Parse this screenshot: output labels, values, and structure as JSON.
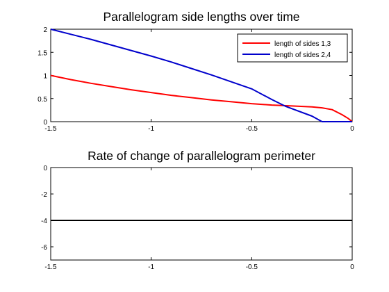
{
  "colors": {
    "sides13": "#ff0000",
    "sides24": "#0000cc",
    "perimeter": "#000000",
    "axis": "#000000"
  },
  "chart_data": [
    {
      "type": "line",
      "title": "Parallelogram side lengths over time",
      "xlabel": "",
      "ylabel": "",
      "xlim": [
        -1.5,
        0
      ],
      "ylim": [
        0,
        2
      ],
      "xticks": [
        "-1.5",
        "-1",
        "-0.5",
        "0"
      ],
      "yticks": [
        "0",
        "0.5",
        "1",
        "1.5",
        "2"
      ],
      "grid": false,
      "legend_position": "top-right",
      "series": [
        {
          "name": "length of sides 1,3",
          "x": [
            -1.5,
            -1.4,
            -1.3,
            -1.2,
            -1.1,
            -1.0,
            -0.9,
            -0.8,
            -0.7,
            -0.6,
            -0.5,
            -0.4,
            -0.3,
            -0.2,
            -0.15,
            -0.1,
            -0.05,
            -0.02,
            0
          ],
          "y": [
            1.0,
            0.91,
            0.83,
            0.76,
            0.69,
            0.63,
            0.57,
            0.52,
            0.47,
            0.43,
            0.39,
            0.36,
            0.34,
            0.32,
            0.3,
            0.26,
            0.15,
            0.07,
            0.0
          ]
        },
        {
          "name": "length of sides 2,4",
          "x": [
            -1.5,
            -1.4,
            -1.3,
            -1.2,
            -1.1,
            -1.0,
            -0.9,
            -0.8,
            -0.7,
            -0.6,
            -0.5,
            -0.4,
            -0.33,
            -0.2,
            -0.15,
            -0.1,
            -0.05,
            0
          ],
          "y": [
            2.0,
            1.89,
            1.78,
            1.66,
            1.54,
            1.42,
            1.29,
            1.15,
            1.01,
            0.86,
            0.71,
            0.48,
            0.33,
            0.12,
            0.0,
            0.0,
            0.0,
            0.0
          ]
        }
      ]
    },
    {
      "type": "line",
      "title": "Rate of change of parallelogram perimeter",
      "xlabel": "",
      "ylabel": "",
      "xlim": [
        -1.5,
        0
      ],
      "ylim": [
        -7,
        0
      ],
      "xticks": [
        "-1.5",
        "-1",
        "-0.5",
        "0"
      ],
      "yticks": [
        "0",
        "-2",
        "-4",
        "-6"
      ],
      "grid": false,
      "series": [
        {
          "x": [
            -1.5,
            0
          ],
          "y": [
            -4,
            -4
          ]
        }
      ]
    }
  ]
}
